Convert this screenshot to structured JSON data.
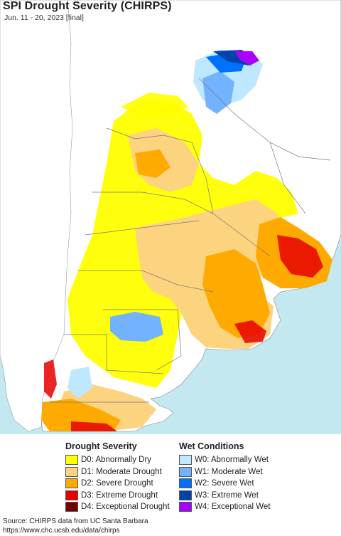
{
  "header": {
    "title": "SPI Drought Severity (CHIRPS)",
    "subtitle": "Jun. 11 - 20, 2023 [final]"
  },
  "legend": {
    "drought": {
      "heading": "Drought Severity",
      "items": [
        {
          "label": "D0: Abnormally Dry",
          "color": "#ffff00"
        },
        {
          "label": "D1: Moderate Drought",
          "color": "#fcd37f"
        },
        {
          "label": "D2: Severe Drought",
          "color": "#ffaa00"
        },
        {
          "label": "D3: Extreme Drought",
          "color": "#e60000"
        },
        {
          "label": "D4: Exceptional Drought",
          "color": "#730000"
        }
      ]
    },
    "wet": {
      "heading": "Wet Conditions",
      "items": [
        {
          "label": "W0: Abnormally Wet",
          "color": "#bee8ff"
        },
        {
          "label": "W1: Moderate Wet",
          "color": "#73b2ff"
        },
        {
          "label": "W2: Severe Wet",
          "color": "#0070ff"
        },
        {
          "label": "W3: Extreme Wet",
          "color": "#0044aa"
        },
        {
          "label": "W4: Exceptional Wet",
          "color": "#aa00ff"
        }
      ]
    }
  },
  "source": {
    "line1": "Source: CHIRPS data from UC Santa Barbara",
    "line2": "https://www.chc.ucsb.edu/data/chirps"
  },
  "map": {
    "ocean_color": "#c4e8f0",
    "land_color": "#ffffff"
  }
}
